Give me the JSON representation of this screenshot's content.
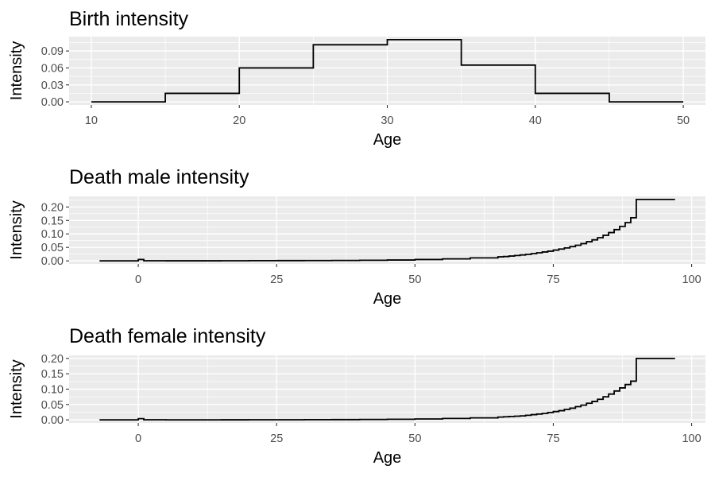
{
  "chart_data": [
    {
      "type": "line",
      "step": true,
      "title": "Birth intensity",
      "xlabel": "Age",
      "ylabel": "Intensity",
      "xlim": [
        8.5,
        51.5
      ],
      "ylim": [
        -0.0055,
        0.1155
      ],
      "xticks": [
        10,
        20,
        30,
        40,
        50
      ],
      "xtick_labels": [
        "10",
        "20",
        "30",
        "40",
        "50"
      ],
      "yticks": [
        0,
        0.03,
        0.06,
        0.09
      ],
      "ytick_labels": [
        "0.00",
        "0.03",
        "0.06",
        "0.09"
      ],
      "grid": true,
      "series": [
        {
          "x": [
            10,
            15,
            20,
            25,
            30,
            35,
            40,
            45,
            50
          ],
          "y": [
            0.0,
            0.015,
            0.06,
            0.101,
            0.11,
            0.065,
            0.015,
            0.0,
            0.0
          ]
        }
      ]
    },
    {
      "type": "line",
      "step": true,
      "title": "Death male intensity",
      "xlabel": "Age",
      "ylabel": "Intensity",
      "xlim": [
        -12.5,
        102.5
      ],
      "ylim": [
        -0.0114,
        0.2394
      ],
      "xticks": [
        0,
        25,
        50,
        75,
        100
      ],
      "xtick_labels": [
        "0",
        "25",
        "50",
        "75",
        "100"
      ],
      "yticks": [
        0,
        0.05,
        0.1,
        0.15,
        0.2
      ],
      "ytick_labels": [
        "0.00",
        "0.05",
        "0.10",
        "0.15",
        "0.20"
      ],
      "grid": true,
      "series": [
        {
          "x": [
            -7,
            0,
            1,
            5,
            10,
            15,
            20,
            25,
            30,
            35,
            40,
            45,
            50,
            55,
            60,
            65,
            66,
            67,
            68,
            69,
            70,
            71,
            72,
            73,
            74,
            75,
            76,
            77,
            78,
            79,
            80,
            81,
            82,
            83,
            84,
            85,
            86,
            87,
            88,
            89,
            90,
            97
          ],
          "y": [
            0.0,
            0.005,
            0.0005,
            0.0002,
            0.0002,
            0.0005,
            0.0008,
            0.001,
            0.0012,
            0.0016,
            0.0022,
            0.0032,
            0.005,
            0.0075,
            0.011,
            0.015,
            0.016,
            0.018,
            0.02,
            0.022,
            0.024,
            0.027,
            0.03,
            0.033,
            0.036,
            0.04,
            0.044,
            0.048,
            0.053,
            0.058,
            0.064,
            0.071,
            0.078,
            0.086,
            0.095,
            0.105,
            0.116,
            0.128,
            0.142,
            0.16,
            0.228,
            0.228
          ]
        }
      ]
    },
    {
      "type": "line",
      "step": true,
      "title": "Death female intensity",
      "xlabel": "Age",
      "ylabel": "Intensity",
      "xlim": [
        -12.5,
        102.5
      ],
      "ylim": [
        -0.01,
        0.21
      ],
      "xticks": [
        0,
        25,
        50,
        75,
        100
      ],
      "xtick_labels": [
        "0",
        "25",
        "50",
        "75",
        "100"
      ],
      "yticks": [
        0,
        0.05,
        0.1,
        0.15,
        0.2
      ],
      "ytick_labels": [
        "0.00",
        "0.05",
        "0.10",
        "0.15",
        "0.20"
      ],
      "grid": true,
      "series": [
        {
          "x": [
            -7,
            0,
            1,
            5,
            10,
            15,
            20,
            25,
            30,
            35,
            40,
            45,
            50,
            55,
            60,
            65,
            66,
            67,
            68,
            69,
            70,
            71,
            72,
            73,
            74,
            75,
            76,
            77,
            78,
            79,
            80,
            81,
            82,
            83,
            84,
            85,
            86,
            87,
            88,
            89,
            90,
            97
          ],
          "y": [
            0.0,
            0.004,
            0.0004,
            0.0001,
            0.0001,
            0.0002,
            0.0003,
            0.0004,
            0.0006,
            0.0009,
            0.0013,
            0.002,
            0.003,
            0.0045,
            0.0065,
            0.009,
            0.01,
            0.011,
            0.012,
            0.013,
            0.015,
            0.017,
            0.019,
            0.021,
            0.024,
            0.027,
            0.03,
            0.034,
            0.038,
            0.043,
            0.048,
            0.054,
            0.06,
            0.067,
            0.075,
            0.084,
            0.094,
            0.104,
            0.115,
            0.126,
            0.2,
            0.2
          ]
        }
      ]
    }
  ]
}
